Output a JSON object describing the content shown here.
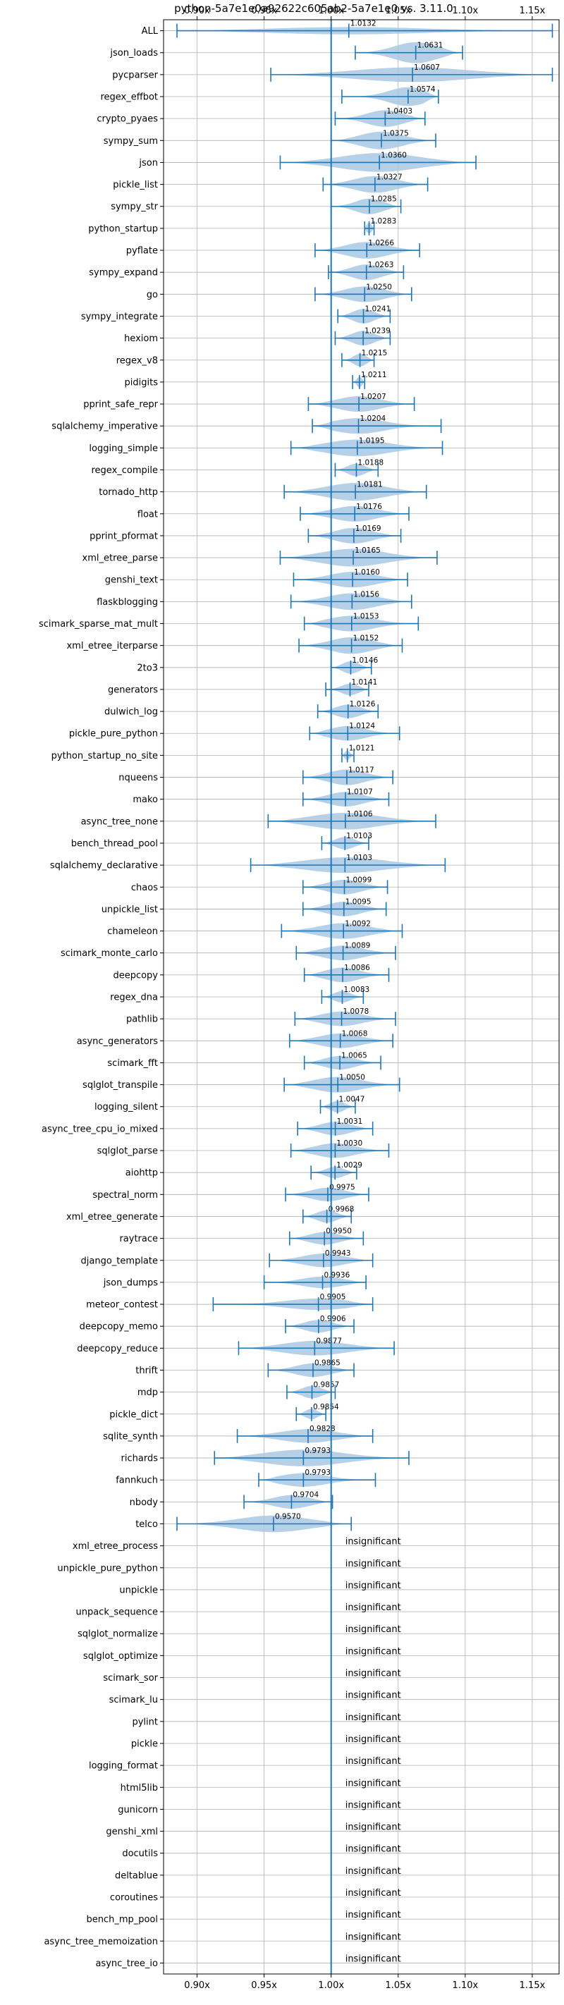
{
  "chart_data": {
    "type": "violin",
    "title": "python-5a7e1e0a92622c605ab2-5a7e1e0 vs. 3.11.0",
    "xlim": [
      0.875,
      1.17
    ],
    "xticks": [
      "0.90x",
      "0.95x",
      "1.00x",
      "1.05x",
      "1.10x",
      "1.15x"
    ],
    "xtick_values": [
      0.9,
      0.95,
      1.0,
      1.05,
      1.1,
      1.15
    ],
    "reference_line": 1.0,
    "grid": true,
    "colors": {
      "violin": "#a9c8e4",
      "line": "#1f77b4",
      "grid": "#b0b0b0"
    },
    "insignificant_label": "insignificant",
    "benchmarks": [
      {
        "name": "ALL",
        "mean": 1.0132,
        "lo": 0.885,
        "hi": 1.165,
        "w": 0.35,
        "label": "1.0132"
      },
      {
        "name": "json_loads",
        "mean": 1.0631,
        "lo": 1.018,
        "hi": 1.098,
        "w": 1.0,
        "label": "1.0631"
      },
      {
        "name": "pycparser",
        "mean": 1.0607,
        "lo": 0.955,
        "hi": 1.165,
        "w": 0.7,
        "label": "1.0607"
      },
      {
        "name": "regex_effbot",
        "mean": 1.0574,
        "lo": 1.008,
        "hi": 1.08,
        "w": 0.9,
        "label": "1.0574"
      },
      {
        "name": "crypto_pyaes",
        "mean": 1.0403,
        "lo": 1.003,
        "hi": 1.07,
        "w": 0.8,
        "label": "1.0403"
      },
      {
        "name": "sympy_sum",
        "mean": 1.0375,
        "lo": 1.0,
        "hi": 1.078,
        "w": 0.85,
        "label": "1.0375"
      },
      {
        "name": "json",
        "mean": 1.036,
        "lo": 0.962,
        "hi": 1.108,
        "w": 0.9,
        "label": "1.0360"
      },
      {
        "name": "pickle_list",
        "mean": 1.0327,
        "lo": 0.994,
        "hi": 1.072,
        "w": 0.8,
        "label": "1.0327"
      },
      {
        "name": "sympy_str",
        "mean": 1.0285,
        "lo": 1.0,
        "hi": 1.052,
        "w": 0.75,
        "label": "1.0285"
      },
      {
        "name": "python_startup",
        "mean": 1.0283,
        "lo": 1.025,
        "hi": 1.032,
        "w": 0.5,
        "label": "1.0283"
      },
      {
        "name": "pyflate",
        "mean": 1.0266,
        "lo": 0.988,
        "hi": 1.066,
        "w": 0.8,
        "label": "1.0266"
      },
      {
        "name": "sympy_expand",
        "mean": 1.0263,
        "lo": 0.998,
        "hi": 1.054,
        "w": 0.75,
        "label": "1.0263"
      },
      {
        "name": "go",
        "mean": 1.025,
        "lo": 0.988,
        "hi": 1.06,
        "w": 0.75,
        "label": "1.0250"
      },
      {
        "name": "sympy_integrate",
        "mean": 1.0241,
        "lo": 1.005,
        "hi": 1.044,
        "w": 0.7,
        "label": "1.0241"
      },
      {
        "name": "hexiom",
        "mean": 1.0239,
        "lo": 1.003,
        "hi": 1.044,
        "w": 0.7,
        "label": "1.0239"
      },
      {
        "name": "regex_v8",
        "mean": 1.0215,
        "lo": 1.008,
        "hi": 1.032,
        "w": 0.6,
        "label": "1.0215"
      },
      {
        "name": "pidigits",
        "mean": 1.0211,
        "lo": 1.016,
        "hi": 1.025,
        "w": 0.5,
        "label": "1.0211"
      },
      {
        "name": "pprint_safe_repr",
        "mean": 1.0207,
        "lo": 0.983,
        "hi": 1.062,
        "w": 0.75,
        "label": "1.0207"
      },
      {
        "name": "sqlalchemy_imperative",
        "mean": 1.0204,
        "lo": 0.986,
        "hi": 1.082,
        "w": 0.75,
        "label": "1.0204"
      },
      {
        "name": "logging_simple",
        "mean": 1.0195,
        "lo": 0.97,
        "hi": 1.083,
        "w": 0.8,
        "label": "1.0195"
      },
      {
        "name": "regex_compile",
        "mean": 1.0188,
        "lo": 1.003,
        "hi": 1.035,
        "w": 0.6,
        "label": "1.0188"
      },
      {
        "name": "tornado_http",
        "mean": 1.0181,
        "lo": 0.965,
        "hi": 1.071,
        "w": 0.85,
        "label": "1.0181"
      },
      {
        "name": "float",
        "mean": 1.0176,
        "lo": 0.977,
        "hi": 1.058,
        "w": 0.75,
        "label": "1.0176"
      },
      {
        "name": "pprint_pformat",
        "mean": 1.0169,
        "lo": 0.983,
        "hi": 1.052,
        "w": 0.75,
        "label": "1.0169"
      },
      {
        "name": "xml_etree_parse",
        "mean": 1.0165,
        "lo": 0.962,
        "hi": 1.079,
        "w": 0.85,
        "label": "1.0165"
      },
      {
        "name": "genshi_text",
        "mean": 1.016,
        "lo": 0.972,
        "hi": 1.057,
        "w": 0.75,
        "label": "1.0160"
      },
      {
        "name": "flaskblogging",
        "mean": 1.0156,
        "lo": 0.97,
        "hi": 1.06,
        "w": 0.8,
        "label": "1.0156"
      },
      {
        "name": "scimark_sparse_mat_mult",
        "mean": 1.0153,
        "lo": 0.98,
        "hi": 1.065,
        "w": 0.75,
        "label": "1.0153"
      },
      {
        "name": "xml_etree_iterparse",
        "mean": 1.0152,
        "lo": 0.976,
        "hi": 1.053,
        "w": 0.8,
        "label": "1.0152"
      },
      {
        "name": "2to3",
        "mean": 1.0146,
        "lo": 1.0,
        "hi": 1.03,
        "w": 0.6,
        "label": "1.0146"
      },
      {
        "name": "generators",
        "mean": 1.0141,
        "lo": 0.996,
        "hi": 1.028,
        "w": 0.55,
        "label": "1.0141"
      },
      {
        "name": "dulwich_log",
        "mean": 1.0126,
        "lo": 0.99,
        "hi": 1.035,
        "w": 0.65,
        "label": "1.0126"
      },
      {
        "name": "pickle_pure_python",
        "mean": 1.0124,
        "lo": 0.984,
        "hi": 1.051,
        "w": 0.7,
        "label": "1.0124"
      },
      {
        "name": "python_startup_no_site",
        "mean": 1.0121,
        "lo": 1.008,
        "hi": 1.017,
        "w": 0.45,
        "label": "1.0121"
      },
      {
        "name": "nqueens",
        "mean": 1.0117,
        "lo": 0.979,
        "hi": 1.046,
        "w": 0.75,
        "label": "1.0117"
      },
      {
        "name": "mako",
        "mean": 1.0107,
        "lo": 0.979,
        "hi": 1.043,
        "w": 0.7,
        "label": "1.0107"
      },
      {
        "name": "async_tree_none",
        "mean": 1.0106,
        "lo": 0.953,
        "hi": 1.078,
        "w": 0.8,
        "label": "1.0106"
      },
      {
        "name": "bench_thread_pool",
        "mean": 1.0103,
        "lo": 0.993,
        "hi": 1.028,
        "w": 0.6,
        "label": "1.0103"
      },
      {
        "name": "sqlalchemy_declarative",
        "mean": 1.0103,
        "lo": 0.94,
        "hi": 1.085,
        "w": 0.75,
        "label": "1.0103"
      },
      {
        "name": "chaos",
        "mean": 1.0099,
        "lo": 0.979,
        "hi": 1.042,
        "w": 0.7,
        "label": "1.0099"
      },
      {
        "name": "unpickle_list",
        "mean": 1.0095,
        "lo": 0.979,
        "hi": 1.041,
        "w": 0.7,
        "label": "1.0095"
      },
      {
        "name": "chameleon",
        "mean": 1.0092,
        "lo": 0.963,
        "hi": 1.053,
        "w": 0.75,
        "label": "1.0092"
      },
      {
        "name": "scimark_monte_carlo",
        "mean": 1.0089,
        "lo": 0.974,
        "hi": 1.048,
        "w": 0.7,
        "label": "1.0089"
      },
      {
        "name": "deepcopy",
        "mean": 1.0086,
        "lo": 0.98,
        "hi": 1.043,
        "w": 0.7,
        "label": "1.0086"
      },
      {
        "name": "regex_dna",
        "mean": 1.0083,
        "lo": 0.993,
        "hi": 1.024,
        "w": 0.55,
        "label": "1.0083"
      },
      {
        "name": "pathlib",
        "mean": 1.0078,
        "lo": 0.973,
        "hi": 1.048,
        "w": 0.7,
        "label": "1.0078"
      },
      {
        "name": "async_generators",
        "mean": 1.0068,
        "lo": 0.969,
        "hi": 1.046,
        "w": 0.7,
        "label": "1.0068"
      },
      {
        "name": "scimark_fft",
        "mean": 1.0065,
        "lo": 0.98,
        "hi": 1.037,
        "w": 0.65,
        "label": "1.0065"
      },
      {
        "name": "sqlglot_transpile",
        "mean": 1.005,
        "lo": 0.965,
        "hi": 1.051,
        "w": 0.75,
        "label": "1.0050"
      },
      {
        "name": "logging_silent",
        "mean": 1.0047,
        "lo": 0.992,
        "hi": 1.018,
        "w": 0.55,
        "label": "1.0047"
      },
      {
        "name": "async_tree_cpu_io_mixed",
        "mean": 1.0031,
        "lo": 0.975,
        "hi": 1.031,
        "w": 0.65,
        "label": "1.0031"
      },
      {
        "name": "sqlglot_parse",
        "mean": 1.003,
        "lo": 0.97,
        "hi": 1.043,
        "w": 0.7,
        "label": "1.0030"
      },
      {
        "name": "aiohttp",
        "mean": 1.0029,
        "lo": 0.985,
        "hi": 1.019,
        "w": 0.55,
        "label": "1.0029"
      },
      {
        "name": "spectral_norm",
        "mean": 0.9975,
        "lo": 0.966,
        "hi": 1.028,
        "w": 0.65,
        "label": "0.9975"
      },
      {
        "name": "xml_etree_generate",
        "mean": 0.9968,
        "lo": 0.979,
        "hi": 1.015,
        "w": 0.6,
        "label": "0.9968"
      },
      {
        "name": "raytrace",
        "mean": 0.995,
        "lo": 0.969,
        "hi": 1.024,
        "w": 0.6,
        "label": "0.9950"
      },
      {
        "name": "django_template",
        "mean": 0.9943,
        "lo": 0.954,
        "hi": 1.031,
        "w": 0.65,
        "label": "0.9943"
      },
      {
        "name": "json_dumps",
        "mean": 0.9936,
        "lo": 0.95,
        "hi": 1.026,
        "w": 0.55,
        "label": "0.9936"
      },
      {
        "name": "meteor_contest",
        "mean": 0.9905,
        "lo": 0.912,
        "hi": 1.031,
        "w": 0.55,
        "label": "0.9905"
      },
      {
        "name": "deepcopy_memo",
        "mean": 0.9906,
        "lo": 0.966,
        "hi": 1.017,
        "w": 0.6,
        "label": "0.9906"
      },
      {
        "name": "deepcopy_reduce",
        "mean": 0.9877,
        "lo": 0.931,
        "hi": 1.047,
        "w": 0.7,
        "label": "0.9877"
      },
      {
        "name": "thrift",
        "mean": 0.9865,
        "lo": 0.953,
        "hi": 1.017,
        "w": 0.65,
        "label": "0.9865"
      },
      {
        "name": "mdp",
        "mean": 0.9857,
        "lo": 0.967,
        "hi": 1.003,
        "w": 0.6,
        "label": "0.9857"
      },
      {
        "name": "pickle_dict",
        "mean": 0.9854,
        "lo": 0.974,
        "hi": 0.996,
        "w": 0.5,
        "label": "0.9854"
      },
      {
        "name": "sqlite_synth",
        "mean": 0.9828,
        "lo": 0.93,
        "hi": 1.031,
        "w": 0.65,
        "label": "0.9828"
      },
      {
        "name": "richards",
        "mean": 0.9793,
        "lo": 0.913,
        "hi": 1.058,
        "w": 0.8,
        "label": "0.9793"
      },
      {
        "name": "fannkuch",
        "mean": 0.9793,
        "lo": 0.946,
        "hi": 1.033,
        "w": 0.65,
        "label": "0.9793"
      },
      {
        "name": "nbody",
        "mean": 0.9704,
        "lo": 0.935,
        "hi": 1.001,
        "w": 0.65,
        "label": "0.9704"
      },
      {
        "name": "telco",
        "mean": 0.957,
        "lo": 0.885,
        "hi": 1.015,
        "w": 0.8,
        "label": "0.9570"
      },
      {
        "name": "xml_etree_process",
        "insignificant": true
      },
      {
        "name": "unpickle_pure_python",
        "insignificant": true
      },
      {
        "name": "unpickle",
        "insignificant": true
      },
      {
        "name": "unpack_sequence",
        "insignificant": true
      },
      {
        "name": "sqlglot_normalize",
        "insignificant": true
      },
      {
        "name": "sqlglot_optimize",
        "insignificant": true
      },
      {
        "name": "scimark_sor",
        "insignificant": true
      },
      {
        "name": "scimark_lu",
        "insignificant": true
      },
      {
        "name": "pylint",
        "insignificant": true
      },
      {
        "name": "pickle",
        "insignificant": true
      },
      {
        "name": "logging_format",
        "insignificant": true
      },
      {
        "name": "html5lib",
        "insignificant": true
      },
      {
        "name": "gunicorn",
        "insignificant": true
      },
      {
        "name": "genshi_xml",
        "insignificant": true
      },
      {
        "name": "docutils",
        "insignificant": true
      },
      {
        "name": "deltablue",
        "insignificant": true
      },
      {
        "name": "coroutines",
        "insignificant": true
      },
      {
        "name": "bench_mp_pool",
        "insignificant": true
      },
      {
        "name": "async_tree_memoization",
        "insignificant": true
      },
      {
        "name": "async_tree_io",
        "insignificant": true
      }
    ]
  }
}
